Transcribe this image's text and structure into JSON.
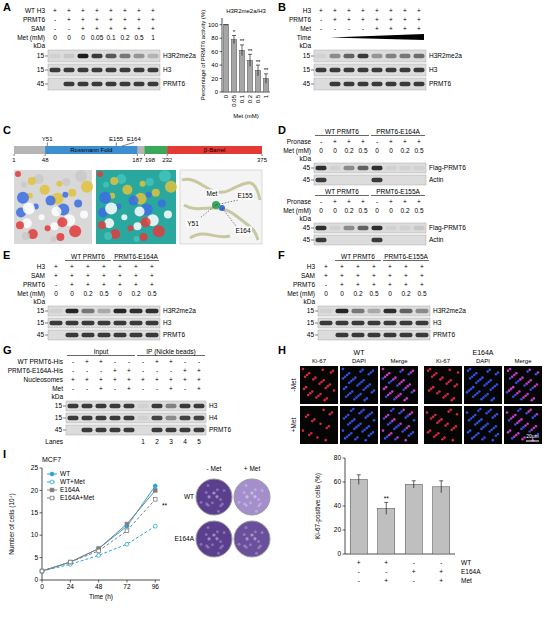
{
  "panels": [
    {
      "letter": "A",
      "blot": {
        "kda_label": "kDa",
        "rows": [
          {
            "label": "WT H3",
            "cells": [
              "+",
              "+",
              "+",
              "+",
              "+",
              "+",
              "+",
              "+"
            ]
          },
          {
            "label": "PRMT6",
            "cells": [
              "-",
              "+",
              "+",
              "+",
              "+",
              "+",
              "+",
              "+"
            ]
          },
          {
            "label": "SAM",
            "cells": [
              "-",
              "-",
              "+",
              "+",
              "+",
              "+",
              "+",
              "+"
            ]
          },
          {
            "label": "Met (mM)",
            "cells": [
              "0",
              "0",
              "0",
              "0.05",
              "0.1",
              "0.2",
              "0.5",
              "1"
            ]
          }
        ],
        "bands": [
          {
            "label": "H3R2me2a",
            "kda": 15,
            "intensity": [
              0.05,
              0.1,
              0.95,
              0.8,
              0.65,
              0.5,
              0.35,
              0.2
            ]
          },
          {
            "label": "H3",
            "kda": 15,
            "intensity": [
              0.8,
              0.8,
              0.8,
              0.8,
              0.8,
              0.8,
              0.8,
              0.8
            ]
          },
          {
            "label": "PRMT6",
            "kda": 45,
            "intensity": [
              0,
              0.8,
              0.8,
              0.8,
              0.8,
              0.8,
              0.8,
              0.8
            ]
          }
        ]
      }
    },
    {
      "letter": "B",
      "blot": {
        "kda_label": "kDa",
        "rows": [
          {
            "label": "H3",
            "cells": [
              "+",
              "+",
              "+",
              "+",
              "+",
              "+",
              "+",
              "+"
            ]
          },
          {
            "label": "PRMT6",
            "cells": [
              "-",
              "+",
              "+",
              "+",
              "+",
              "+",
              "+",
              "+"
            ]
          },
          {
            "label": "Met",
            "cells": [
              "-",
              "-",
              "-",
              "-",
              "+",
              "+",
              "+",
              "+"
            ]
          },
          {
            "label": "Time",
            "ramp": [
              1,
              7
            ]
          }
        ],
        "bands": [
          {
            "label": "H3R2me2a",
            "kda": 15,
            "intensity": [
              0.05,
              0.4,
              0.6,
              0.8,
              0.35,
              0.45,
              0.5,
              0.55
            ]
          },
          {
            "label": "H3",
            "kda": 15,
            "intensity": [
              0.8,
              0.8,
              0.8,
              0.8,
              0.8,
              0.8,
              0.8,
              0.8
            ]
          },
          {
            "label": "PRMT6",
            "kda": 45,
            "intensity": [
              0,
              0.8,
              0.8,
              0.8,
              0.8,
              0.8,
              0.8,
              0.8
            ]
          }
        ]
      }
    },
    {
      "letter": "C",
      "domain_map": {
        "start": 1,
        "end": 375,
        "domains": [
          {
            "label": "Rossmann Fold",
            "from": 48,
            "to": 187,
            "color": "#3d8fd1"
          },
          {
            "from": 198,
            "to": 232,
            "color": "#3aa85a"
          },
          {
            "label": "β-Barrel",
            "from": 232,
            "to": 375,
            "color": "#e53935"
          }
        ],
        "ticks": [
          1,
          48,
          187,
          198,
          232,
          375
        ],
        "residues": [
          {
            "label": "Y51",
            "pos": 51
          },
          {
            "label": "E155",
            "pos": 155
          },
          {
            "label": "E164",
            "pos": 164
          }
        ]
      },
      "structure_labels": [
        "Met",
        "E155",
        "Y51",
        "E164"
      ]
    },
    {
      "letter": "D",
      "blots": [
        {
          "kda_label": "kDa",
          "groups": [
            {
              "label": "WT PRMT6",
              "from": 0,
              "to": 3
            },
            {
              "label": "PRMT6-E164A",
              "from": 4,
              "to": 7
            }
          ],
          "rows": [
            {
              "label": "Pronase",
              "cells": [
                "-",
                "+",
                "+",
                "+",
                "-",
                "+",
                "+",
                "+"
              ]
            },
            {
              "label": "Met (mM)",
              "cells": [
                "0",
                "0",
                "0.2",
                "0.5",
                "0",
                "0",
                "0.2",
                "0.5"
              ]
            }
          ],
          "bands": [
            {
              "label": "Flag-PRMT6",
              "kda": 45,
              "intensity": [
                0.85,
                0.05,
                0.4,
                0.6,
                0.85,
                0.05,
                0.05,
                0.05
              ]
            },
            {
              "label": "Actin",
              "kda": 45,
              "intensity": [
                0.8,
                0,
                0,
                0,
                0.8,
                0,
                0,
                0
              ]
            }
          ]
        },
        {
          "kda_label": "kDa",
          "groups": [
            {
              "label": "WT PRMT6",
              "from": 0,
              "to": 3
            },
            {
              "label": "PRMT6-E155A",
              "from": 4,
              "to": 7
            }
          ],
          "rows": [
            {
              "label": "Pronase",
              "cells": [
                "-",
                "+",
                "+",
                "+",
                "-",
                "+",
                "+",
                "+"
              ]
            },
            {
              "label": "Met (mM)",
              "cells": [
                "0",
                "0",
                "0.2",
                "0.5",
                "0",
                "0",
                "0.2",
                "0.5"
              ]
            }
          ],
          "bands": [
            {
              "label": "Flag-PRMT6",
              "kda": 45,
              "intensity": [
                0.85,
                0.05,
                0.4,
                0.6,
                0.85,
                0.05,
                0.05,
                0.1
              ]
            },
            {
              "label": "Actin",
              "kda": 45,
              "intensity": [
                0.8,
                0,
                0,
                0,
                0.8,
                0,
                0,
                0
              ]
            }
          ]
        }
      ]
    },
    {
      "letter": "E",
      "blot": {
        "kda_label": "kDa",
        "groups": [
          {
            "label": "WT PRMT6",
            "from": 1,
            "to": 3
          },
          {
            "label": "PRMT6-E164A",
            "from": 4,
            "to": 6
          }
        ],
        "rows": [
          {
            "label": "H3",
            "cells": [
              "+",
              "+",
              "+",
              "+",
              "+",
              "+",
              "+"
            ]
          },
          {
            "label": "SAM",
            "cells": [
              "+",
              "+",
              "+",
              "+",
              "+",
              "+",
              "+"
            ]
          },
          {
            "label": "PRMT6",
            "cells": [
              "-",
              "+",
              "+",
              "+",
              "+",
              "+",
              "+"
            ]
          },
          {
            "label": "Met (mM)",
            "cells": [
              "0",
              "0",
              "0.2",
              "0.5",
              "0",
              "0.2",
              "0.5"
            ]
          }
        ],
        "bands": [
          {
            "label": "H3R2me2a",
            "kda": 15,
            "intensity": [
              0.05,
              0.9,
              0.5,
              0.25,
              0.9,
              0.85,
              0.85
            ]
          },
          {
            "label": "H3",
            "kda": 15,
            "intensity": [
              0.8,
              0.8,
              0.8,
              0.8,
              0.8,
              0.8,
              0.8
            ]
          },
          {
            "label": "PRMT6",
            "kda": 45,
            "intensity": [
              0,
              0.8,
              0.8,
              0.8,
              0.8,
              0.8,
              0.8
            ]
          }
        ]
      }
    },
    {
      "letter": "F",
      "blot": {
        "kda_label": "kDa",
        "groups": [
          {
            "label": "WT PRMT6",
            "from": 1,
            "to": 3
          },
          {
            "label": "PRMT6-E155A",
            "from": 4,
            "to": 6
          }
        ],
        "rows": [
          {
            "label": "H3",
            "cells": [
              "+",
              "+",
              "+",
              "+",
              "+",
              "+",
              "+"
            ]
          },
          {
            "label": "SAM",
            "cells": [
              "+",
              "+",
              "+",
              "+",
              "+",
              "+",
              "+"
            ]
          },
          {
            "label": "PRMT6",
            "cells": [
              "-",
              "+",
              "+",
              "+",
              "+",
              "+",
              "+"
            ]
          },
          {
            "label": "Met (mM)",
            "cells": [
              "0",
              "0",
              "0.2",
              "0.5",
              "0",
              "0.2",
              "0.5"
            ]
          }
        ],
        "bands": [
          {
            "label": "H3R2me2a",
            "kda": 15,
            "intensity": [
              0.05,
              0.9,
              0.5,
              0.25,
              0.85,
              0.6,
              0.4
            ]
          },
          {
            "label": "H3",
            "kda": 15,
            "intensity": [
              0.8,
              0.8,
              0.8,
              0.8,
              0.8,
              0.8,
              0.8
            ]
          },
          {
            "label": "PRMT6",
            "kda": 45,
            "intensity": [
              0,
              0.8,
              0.8,
              0.8,
              0.8,
              0.8,
              0.8
            ]
          }
        ]
      }
    },
    {
      "letter": "G",
      "blot": {
        "kda_label": "kDa",
        "groups": [
          {
            "label": "Input",
            "from": 0,
            "to": 4
          },
          {
            "label": "IP (Nickle beads)",
            "from": 5,
            "to": 9
          }
        ],
        "rows": [
          {
            "label": "WT PRMT6-His",
            "cells": [
              "-",
              "+",
              "+",
              "-",
              "-",
              "-",
              "+",
              "+",
              "-",
              "-"
            ]
          },
          {
            "label": "PRMT6-E164A-His",
            "cells": [
              "-",
              "-",
              "-",
              "+",
              "+",
              "-",
              "-",
              "-",
              "+",
              "+"
            ]
          },
          {
            "label": "Nucleosomes",
            "cells": [
              "+",
              "+",
              "+",
              "+",
              "+",
              "+",
              "+",
              "+",
              "+",
              "+"
            ]
          },
          {
            "label": "Met",
            "cells": [
              "-",
              "-",
              "+",
              "-",
              "+",
              "-",
              "-",
              "+",
              "-",
              "+"
            ]
          }
        ],
        "bands": [
          {
            "label": "H3",
            "kda": 15,
            "intensity": [
              0.8,
              0.8,
              0.8,
              0.8,
              0.8,
              0.05,
              0.8,
              0.45,
              0.8,
              0.8
            ]
          },
          {
            "label": "H4",
            "kda": 15,
            "intensity": [
              0.8,
              0.8,
              0.8,
              0.8,
              0.8,
              0.05,
              0.75,
              0.4,
              0.75,
              0.75
            ]
          },
          {
            "label": "PRMT6",
            "kda": 45,
            "intensity": [
              0,
              0.8,
              0.8,
              0.8,
              0.8,
              0,
              0.8,
              0.8,
              0.8,
              0.8
            ]
          }
        ],
        "rows_below": [
          {
            "label": "Lanes",
            "cells": [
              null,
              null,
              null,
              null,
              null,
              "1",
              "2",
              "3",
              "4",
              "5"
            ]
          }
        ]
      }
    },
    {
      "letter": "H",
      "images": {
        "groups": [
          "WT",
          "E164A"
        ],
        "columns": [
          "Ki-67",
          "DAPI",
          "Merge"
        ],
        "rows": [
          "-Met",
          "+Met"
        ],
        "scale_bar": "20μm"
      },
      "conditions": [
        {
          "label": "WT",
          "cells": [
            "+",
            "+",
            "-",
            "-"
          ]
        },
        {
          "label": "E164A",
          "cells": [
            "-",
            "-",
            "+",
            "+"
          ]
        },
        {
          "label": "Met",
          "cells": [
            "-",
            "+",
            "-",
            "+"
          ]
        }
      ]
    },
    {
      "letter": "I",
      "colonies": {
        "columns": [
          "- Met",
          "+ Met"
        ],
        "rows": [
          "WT",
          "E164A"
        ]
      }
    }
  ],
  "chart_data": [
    {
      "type": "bar",
      "title": "H3R2me2a/H3",
      "x_label": "Met (mM)",
      "y_label": "Percentage of PRMT6 activity (%)",
      "categories": [
        "0",
        "0.05",
        "0.1",
        "0.2",
        "0.5",
        "1"
      ],
      "values": [
        100,
        78,
        62,
        47,
        32,
        20
      ],
      "errors": [
        0,
        6,
        8,
        9,
        8,
        7
      ],
      "annotations": [
        null,
        "*",
        "**",
        "**",
        "**",
        "**"
      ],
      "color": "#a6a6a6",
      "ylim": [
        0,
        110
      ],
      "yticks": [
        0,
        20,
        40,
        60,
        80,
        100
      ],
      "grid": false
    },
    {
      "type": "bar",
      "y_label": "Ki-67-positive cells (%)",
      "categories": [
        null,
        null,
        null,
        null
      ],
      "values": [
        62,
        38,
        58,
        56
      ],
      "errors": [
        4,
        5,
        3,
        5
      ],
      "annotations": [
        null,
        "**",
        null,
        null
      ],
      "color": "#bfbfbf",
      "ylim": [
        0,
        80
      ],
      "yticks": [
        0,
        20,
        40,
        60,
        80
      ],
      "grid": false
    },
    {
      "type": "line",
      "title": "MCF7",
      "x_label": "Time (h)",
      "y_label": "Number of cells (10⁴)",
      "x": [
        0,
        24,
        48,
        72,
        96
      ],
      "xlim": [
        0,
        100
      ],
      "xticks": [
        0,
        24,
        48,
        72,
        96
      ],
      "ylim": [
        0,
        25
      ],
      "yticks": [
        0,
        5,
        10,
        15,
        20,
        25
      ],
      "grid": false,
      "legend": "upper left",
      "annotation": "**",
      "series": [
        {
          "name": "WT",
          "color": "#29a3dc",
          "line_style": "solid",
          "marker": "circle",
          "values": [
            2,
            4,
            7,
            12,
            21
          ]
        },
        {
          "name": "WT+Met",
          "color": "#29a3dc",
          "line_style": "dashed",
          "marker": "circle",
          "values": [
            2,
            3.5,
            5.5,
            8,
            12
          ]
        },
        {
          "name": "E164A",
          "color": "#7f7f7f",
          "line_style": "solid",
          "marker": "square",
          "values": [
            2,
            4,
            7,
            12.5,
            20
          ]
        },
        {
          "name": "E164A+Met",
          "color": "#7f7f7f",
          "line_style": "dashed",
          "marker": "square",
          "values": [
            2,
            4,
            6.5,
            11,
            18
          ]
        }
      ]
    }
  ]
}
